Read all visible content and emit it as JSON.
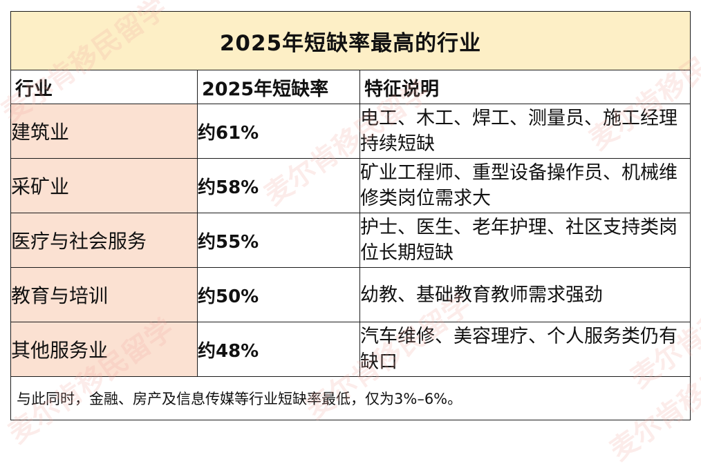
{
  "title": "2025年短缺率最高的行业",
  "headers": {
    "industry": "行业",
    "rate": "2025年短缺率",
    "description": "特征说明"
  },
  "rows": [
    {
      "industry": "建筑业",
      "rate": "约61%",
      "description": "电工、木工、焊工、测量员、施工经理持续短缺"
    },
    {
      "industry": "采矿业",
      "rate": "约58%",
      "description": "矿业工程师、重型设备操作员、机械维修类岗位需求大"
    },
    {
      "industry": "医疗与社会服务",
      "rate": "约55%",
      "description": "护士、医生、老年护理、社区支持类岗位长期短缺"
    },
    {
      "industry": "教育与培训",
      "rate": "约50%",
      "description": "幼教、基础教育教师需求强劲"
    },
    {
      "industry": "其他服务业",
      "rate": "约48%",
      "description": "汽车维修、美容理疗、个人服务类仍有缺口"
    }
  ],
  "footer": "与此同时，金融、房产及信息传媒等行业短缺率最低，仅为3%–6%。",
  "watermark": "麦尔肯移民留学",
  "colors": {
    "title_bg": "#fdefc6",
    "industry_bg": "#fbe1d2",
    "border": "#1a1a1a"
  }
}
